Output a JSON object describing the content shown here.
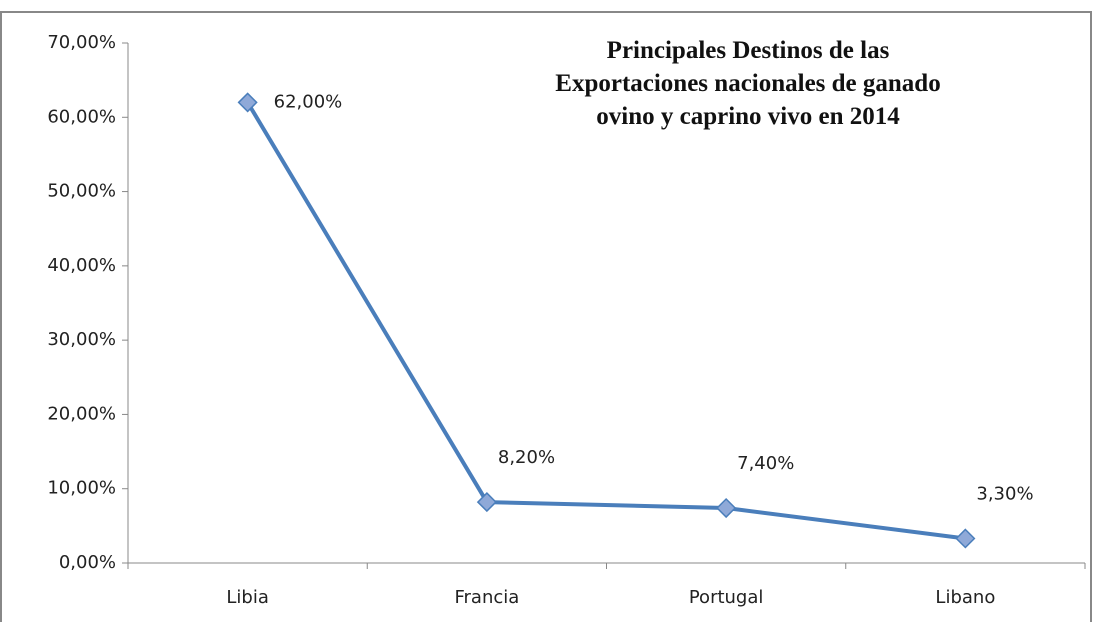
{
  "chart_data": {
    "type": "line",
    "title": "Principales Destinos de las Exportaciones nacionales de ganado ovino y caprino vivo en 2014",
    "categories": [
      "Libia",
      "Francia",
      "Portugal",
      "Libano"
    ],
    "series": [
      {
        "color": "#4a7ebb",
        "marker_color": "#8fa9d8",
        "values": [
          62,
          8.2,
          7.4,
          3.3
        ],
        "value_labels": [
          "62,00%",
          "8,20%",
          "7,40%",
          "3,30%"
        ]
      }
    ],
    "ylim": [
      0,
      70
    ],
    "yticks": [
      {
        "value": 0,
        "label": "0,00%"
      },
      {
        "value": 10,
        "label": "10,00%"
      },
      {
        "value": 20,
        "label": "20,00%"
      },
      {
        "value": 30,
        "label": "30,00%"
      },
      {
        "value": 40,
        "label": "40,00%"
      },
      {
        "value": 50,
        "label": "50,00%"
      },
      {
        "value": 60,
        "label": "60,00%"
      },
      {
        "value": 70,
        "label": "70,00%"
      }
    ],
    "grid": false
  }
}
